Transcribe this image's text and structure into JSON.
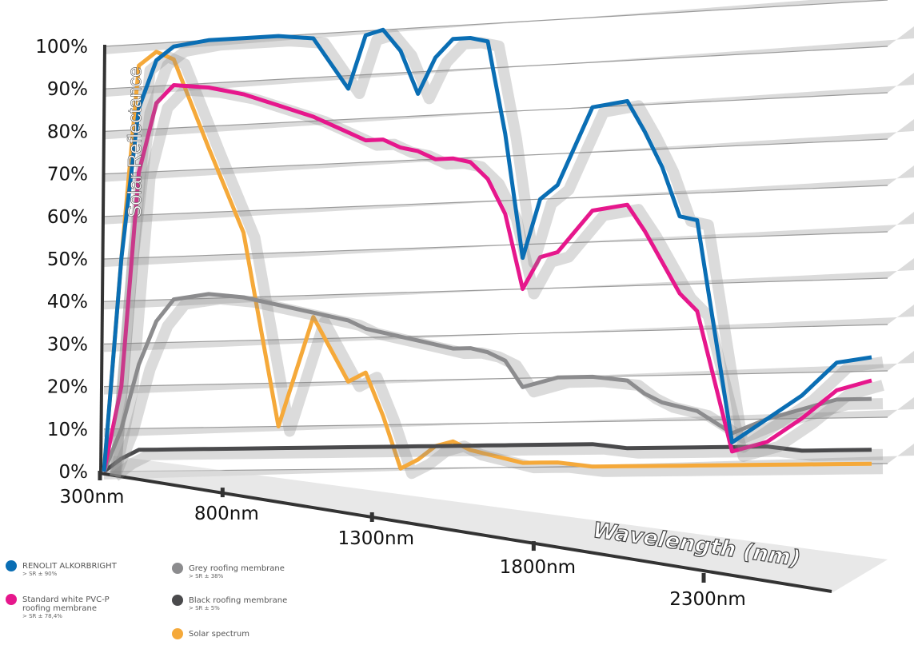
{
  "chart_data": {
    "type": "line",
    "y_axis_label": "Solar Reflectance",
    "x_axis_label": "Wavelength (nm)",
    "x": [
      300,
      350,
      400,
      450,
      500,
      600,
      700,
      800,
      900,
      1000,
      1050,
      1100,
      1150,
      1200,
      1250,
      1300,
      1350,
      1400,
      1450,
      1500,
      1550,
      1600,
      1700,
      1800,
      1850,
      1900,
      1950,
      2000,
      2100,
      2200,
      2300,
      2400,
      2500
    ],
    "xlim": [
      300,
      2500
    ],
    "xticks": [
      {
        "value": 300,
        "label": "300nm"
      },
      {
        "value": 800,
        "label": "800nm"
      },
      {
        "value": 1300,
        "label": "1300nm"
      },
      {
        "value": 1800,
        "label": "1800nm"
      },
      {
        "value": 2300,
        "label": "2300nm"
      }
    ],
    "ylim": [
      0,
      100
    ],
    "yticks": [
      {
        "value": 0,
        "label": "0%"
      },
      {
        "value": 10,
        "label": "10%"
      },
      {
        "value": 20,
        "label": "20%"
      },
      {
        "value": 30,
        "label": "30%"
      },
      {
        "value": 40,
        "label": "40%"
      },
      {
        "value": 50,
        "label": "50%"
      },
      {
        "value": 60,
        "label": "60%"
      },
      {
        "value": 70,
        "label": "70%"
      },
      {
        "value": 80,
        "label": "80%"
      },
      {
        "value": 90,
        "label": "90%"
      },
      {
        "value": 100,
        "label": "100%"
      }
    ],
    "grid": true,
    "series": [
      {
        "name": "RENOLIT ALKORBRIGHT",
        "note": "> SR ± 90%",
        "color": "#0a6eb4",
        "values": [
          0,
          50,
          85,
          96,
          99,
          100,
          100,
          100,
          99,
          87,
          99,
          100,
          95,
          85,
          93,
          97,
          97,
          96,
          75,
          47,
          60,
          63,
          80,
          81,
          74,
          66,
          55,
          54,
          5,
          10,
          15,
          22,
          23
        ]
      },
      {
        "name": "Standard white PVC-P roofing membrane",
        "note": "> SR ± 78,4%",
        "color": "#e6178c",
        "values": [
          0,
          20,
          70,
          86,
          90,
          89,
          87,
          84,
          81,
          77,
          75,
          75,
          73,
          72,
          70,
          70,
          69,
          65,
          57,
          40,
          47,
          48,
          57,
          58,
          52,
          45,
          38,
          34,
          3,
          5,
          10,
          16,
          18
        ]
      },
      {
        "name": "Grey roofing membrane",
        "note": "> SR ± 38%",
        "color": "#8c8c8e",
        "values": [
          0,
          10,
          25,
          35,
          40,
          41,
          40,
          38,
          36,
          34,
          32,
          31,
          30,
          29,
          28,
          27,
          27,
          26,
          24,
          18,
          19,
          20,
          20,
          19,
          16,
          14,
          13,
          12,
          7,
          10,
          12,
          14,
          14
        ]
      },
      {
        "name": "Black roofing membrane",
        "note": "> SR ± 5%",
        "color": "#4a4a4c",
        "values": [
          0,
          3,
          5,
          5,
          5,
          5,
          5,
          5,
          5,
          5,
          5,
          5,
          5,
          5,
          5,
          5,
          5,
          5,
          5,
          5,
          5,
          5,
          5,
          4,
          4,
          4,
          4,
          4,
          4,
          4,
          3,
          3,
          3
        ]
      },
      {
        "name": "Solar spectrum",
        "color": "#f5a93a",
        "values": [
          0,
          50,
          95,
          98,
          96,
          75,
          55,
          10,
          35,
          20,
          22,
          12,
          0,
          2,
          5,
          6,
          4,
          3,
          2,
          1,
          1,
          1,
          0,
          0,
          0,
          0,
          0,
          0,
          0,
          0,
          0,
          0,
          0
        ]
      }
    ]
  }
}
